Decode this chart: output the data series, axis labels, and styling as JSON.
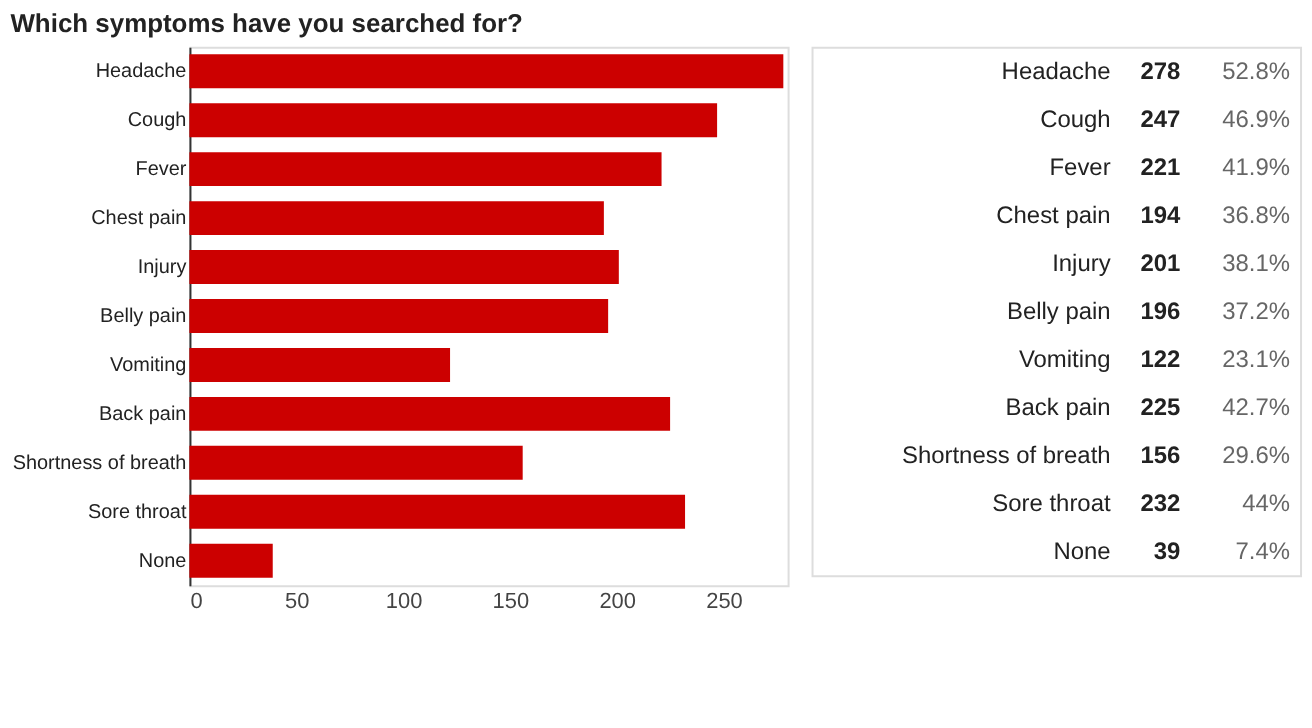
{
  "chart_data": {
    "type": "bar",
    "orientation": "horizontal",
    "title": "Which symptoms have you searched for?",
    "categories": [
      "Headache",
      "Cough",
      "Fever",
      "Chest pain",
      "Injury",
      "Belly pain",
      "Vomiting",
      "Back pain",
      "Shortness of breath",
      "Sore throat",
      "None"
    ],
    "values": [
      278,
      247,
      221,
      194,
      201,
      196,
      122,
      225,
      156,
      232,
      39
    ],
    "color": "#cc0000",
    "xlim": [
      0,
      280
    ],
    "xticks": [
      0,
      50,
      100,
      150,
      200,
      250
    ],
    "grid": false,
    "data_labels": true,
    "annotations": [
      "52.8%",
      "46.9%",
      "41.9%",
      "36.8%",
      "38.1%",
      "37.2%",
      "23.1%",
      "42.7%",
      "29.6%",
      "44%",
      "7.4%"
    ]
  }
}
